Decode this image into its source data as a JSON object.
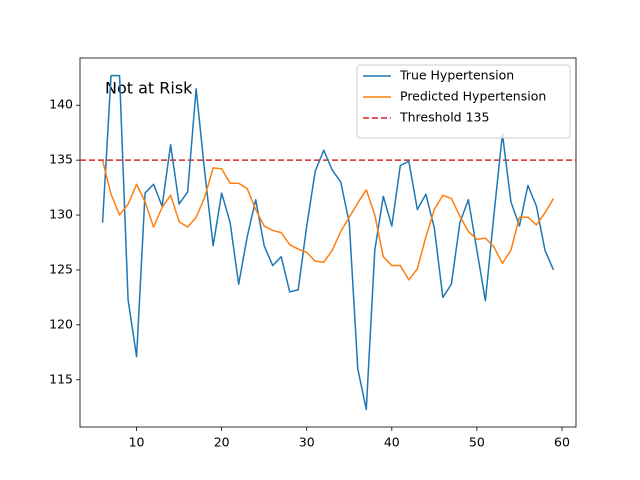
{
  "chart_data": {
    "type": "line",
    "annotation": "Not at Risk",
    "x": [
      6,
      7,
      8,
      9,
      10,
      11,
      12,
      13,
      14,
      15,
      16,
      17,
      18,
      19,
      20,
      21,
      22,
      23,
      24,
      25,
      26,
      27,
      28,
      29,
      30,
      31,
      32,
      33,
      34,
      35,
      36,
      37,
      38,
      39,
      40,
      41,
      42,
      43,
      44,
      45,
      46,
      47,
      48,
      49,
      50,
      51,
      52,
      53,
      54,
      55,
      56,
      57,
      58,
      59
    ],
    "series": [
      {
        "name": "True Hypertension",
        "color": "#1f77b4",
        "values": [
          129.3,
          142.7,
          142.7,
          122.3,
          117.1,
          132.0,
          132.8,
          130.8,
          136.4,
          131.0,
          132.1,
          141.5,
          134.0,
          127.2,
          132.0,
          129.3,
          123.7,
          128.0,
          131.4,
          127.2,
          125.4,
          126.2,
          123.0,
          123.2,
          129.0,
          134.0,
          135.9,
          134.1,
          133.0,
          129.3,
          116.0,
          112.3,
          126.8,
          131.7,
          129.0,
          134.5,
          134.9,
          130.5,
          131.9,
          128.8,
          122.5,
          123.7,
          129.3,
          131.4,
          126.8,
          122.2,
          130.0,
          137.4,
          131.2,
          129.0,
          132.7,
          130.8,
          126.8,
          125.0
        ]
      },
      {
        "name": "Predicted Hypertension",
        "color": "#ff7f0e",
        "values": [
          135.0,
          131.9,
          130.0,
          131.0,
          132.8,
          131.2,
          128.9,
          130.7,
          131.8,
          129.4,
          128.9,
          129.8,
          131.6,
          134.3,
          134.2,
          132.9,
          132.9,
          132.4,
          130.5,
          129.0,
          128.6,
          128.4,
          127.3,
          126.9,
          126.6,
          125.8,
          125.7,
          126.8,
          128.5,
          129.8,
          131.1,
          132.3,
          130.0,
          126.2,
          125.4,
          125.4,
          124.1,
          125.1,
          128.0,
          130.5,
          131.8,
          131.5,
          129.9,
          128.5,
          127.8,
          127.9,
          127.1,
          125.6,
          126.8,
          129.8,
          129.8,
          129.1,
          130.2,
          131.5
        ]
      }
    ],
    "hlines": [
      {
        "name": "Threshold 135",
        "value": 135,
        "color": "#d62728",
        "style": "dashed"
      }
    ],
    "xlim": [
      3.35,
      61.65
    ],
    "ylim": [
      110.7,
      144.3
    ],
    "xticks": [
      10,
      20,
      30,
      40,
      50,
      60
    ],
    "yticks": [
      115,
      120,
      125,
      130,
      135,
      140
    ],
    "grid": false,
    "legend": "upper right"
  }
}
